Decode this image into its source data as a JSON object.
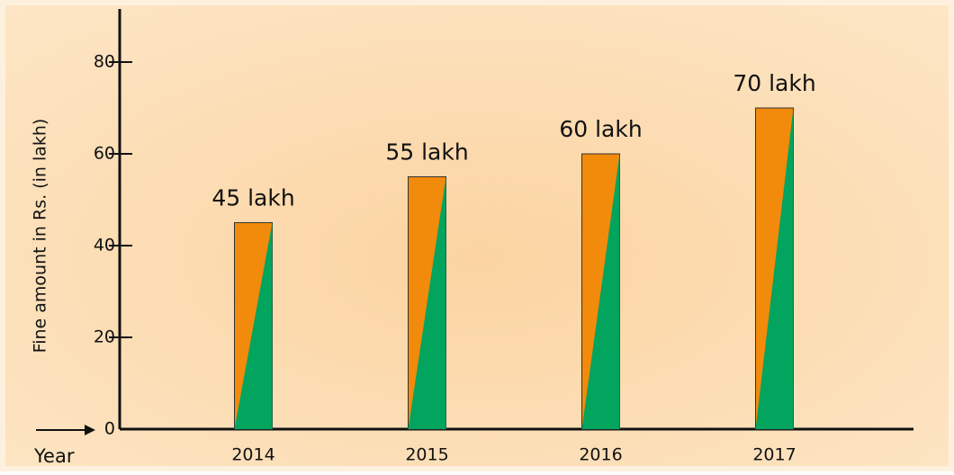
{
  "chart_data": {
    "type": "bar",
    "x_label": "Year",
    "y_label": "Fine amount in Rs. (in lakh)",
    "categories": [
      "2014",
      "2015",
      "2016",
      "2017"
    ],
    "values": [
      45,
      55,
      60,
      70
    ],
    "value_labels": [
      "45 lakh",
      "55 lakh",
      "60 lakh",
      "70 lakh"
    ],
    "colors": [
      "#f28a0c",
      "#03a45e"
    ],
    "ylim": [
      0,
      90
    ],
    "yticks": [
      0,
      20,
      40,
      60,
      80
    ]
  }
}
